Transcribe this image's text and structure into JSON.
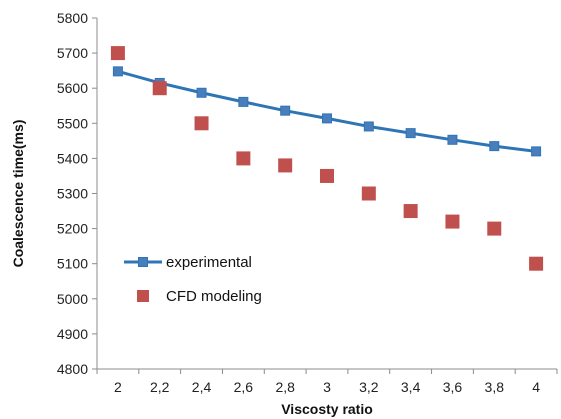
{
  "chart_data": {
    "type": "line",
    "x": [
      2,
      2.2,
      2.4,
      2.6,
      2.8,
      3,
      3.2,
      3.4,
      3.6,
      3.8,
      4
    ],
    "x_tick_labels": [
      "2",
      "2,2",
      "2,4",
      "2,6",
      "2,8",
      "3",
      "3,2",
      "3,4",
      "3,6",
      "3,8",
      "4"
    ],
    "series": [
      {
        "name": "experimental",
        "kind": "line-with-square-markers",
        "color": "#2E75B6",
        "marker_color": "#4A7EBB",
        "values": [
          5648,
          5615,
          5587,
          5561,
          5536,
          5514,
          5491,
          5472,
          5453,
          5435,
          5420
        ]
      },
      {
        "name": "CFD modeling",
        "kind": "scatter-square-markers",
        "color": "#C0504D",
        "values": [
          5700,
          5600,
          5500,
          5400,
          5380,
          5350,
          5300,
          5250,
          5220,
          5200,
          5100
        ]
      }
    ],
    "ylabel": "Coalescence time(ms)",
    "xlabel": "Viscosty ratio",
    "ylim": [
      4800,
      5800
    ],
    "y_ticks": [
      4800,
      4900,
      5000,
      5100,
      5200,
      5300,
      5400,
      5500,
      5600,
      5700,
      5800
    ],
    "grid": false,
    "legend_placement": "center-left"
  }
}
